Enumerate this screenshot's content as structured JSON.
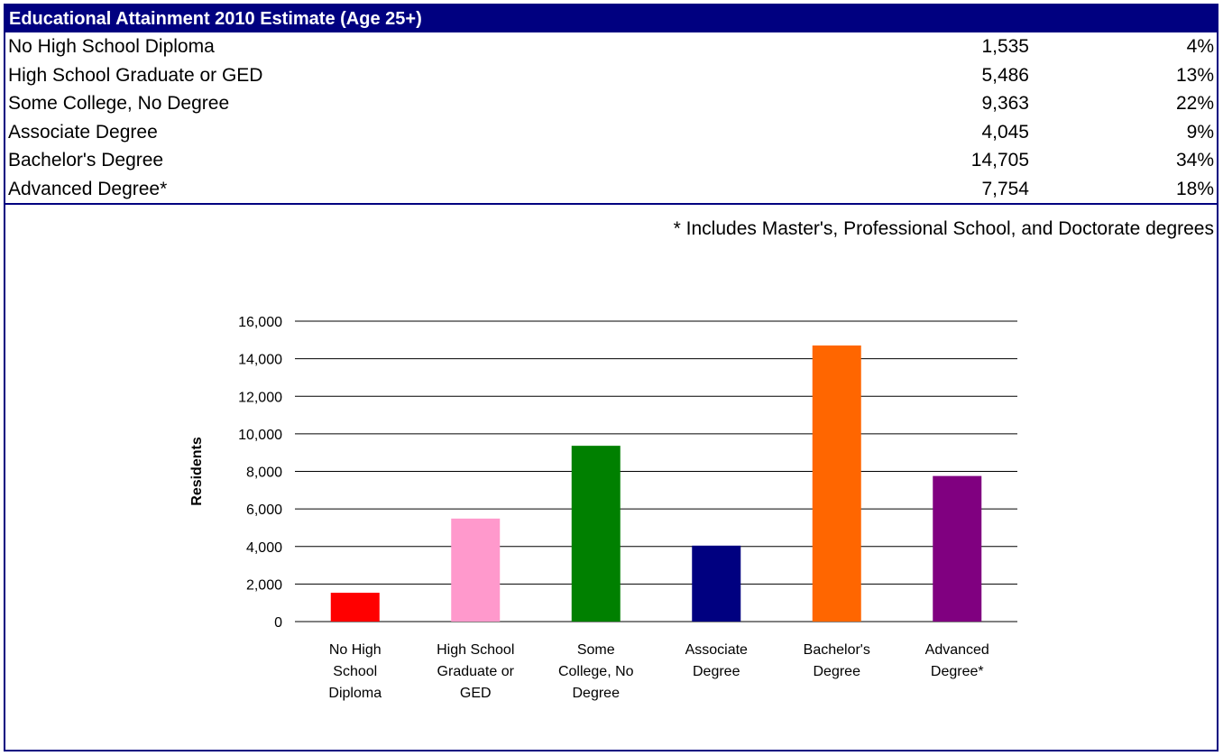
{
  "table": {
    "title": "Educational Attainment 2010 Estimate (Age 25+)",
    "rows": [
      {
        "label": "No High School Diploma",
        "count": "1,535",
        "pct": "4%"
      },
      {
        "label": "High School Graduate or GED",
        "count": "5,486",
        "pct": "13%"
      },
      {
        "label": "Some College, No Degree",
        "count": "9,363",
        "pct": "22%"
      },
      {
        "label": "Associate Degree",
        "count": "4,045",
        "pct": "9%"
      },
      {
        "label": "Bachelor's Degree",
        "count": "14,705",
        "pct": "34%"
      },
      {
        "label": "Advanced Degree*",
        "count": "7,754",
        "pct": "18%"
      }
    ],
    "footnote": "* Includes Master's, Professional School, and Doctorate degrees"
  },
  "colors": {
    "header_bg": "#000080",
    "header_text": "#ffffff",
    "border": "#000080",
    "bars": [
      "#ff0000",
      "#ff99cc",
      "#008000",
      "#000080",
      "#ff6600",
      "#800080"
    ]
  },
  "chart_data": {
    "type": "bar",
    "categories": [
      [
        "No High",
        "School",
        "Diploma"
      ],
      [
        "High School",
        "Graduate or",
        "GED"
      ],
      [
        "Some",
        "College, No",
        "Degree"
      ],
      [
        "Associate",
        "Degree"
      ],
      [
        "Bachelor's",
        "Degree"
      ],
      [
        "Advanced",
        "Degree*"
      ]
    ],
    "values": [
      1535,
      5486,
      9363,
      4045,
      14705,
      7754
    ],
    "ylabel": "Residents",
    "ylim": [
      0,
      16000
    ],
    "yticks": [
      0,
      2000,
      4000,
      6000,
      8000,
      10000,
      12000,
      14000,
      16000
    ],
    "ytick_labels": [
      "0",
      "2,000",
      "4,000",
      "6,000",
      "8,000",
      "10,000",
      "12,000",
      "14,000",
      "16,000"
    ],
    "grid": true,
    "legend": "none"
  }
}
